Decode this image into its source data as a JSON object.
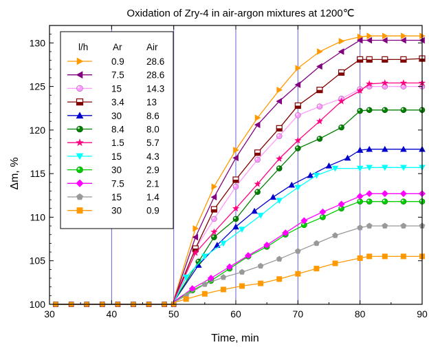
{
  "chart_data": {
    "type": "line",
    "title": "Oxidation of Zry-4 in air-argon mixtures at 1200℃",
    "xlabel": "Time, min",
    "ylabel": "Δm, %",
    "xlim": [
      30,
      90
    ],
    "ylim": [
      100,
      132
    ],
    "x_ticks": [
      30,
      40,
      50,
      60,
      70,
      80,
      90
    ],
    "y_ticks": [
      100,
      105,
      110,
      115,
      120,
      125,
      130
    ],
    "vertical_reference_lines_x": [
      40,
      50,
      60,
      70,
      80
    ],
    "legend": {
      "placement": "upper-left",
      "headers": [
        "l/h",
        "Ar",
        "Air"
      ]
    },
    "baseline_x": [
      31,
      33.5,
      36,
      38.5,
      41,
      43.5,
      46,
      48.5,
      50
    ],
    "series": [
      {
        "ar": "0.9",
        "air": "28.6",
        "color": "#ff9900",
        "marker": "triangle-right",
        "x": [
          50,
          53.5,
          56.5,
          60,
          63.5,
          67,
          70,
          73.5,
          77,
          80,
          81.5,
          84,
          87,
          90
        ],
        "y": [
          100.5,
          108.7,
          113.5,
          117.7,
          121.4,
          124.6,
          127.1,
          129.0,
          130.2,
          130.7,
          130.8,
          130.8,
          130.8,
          130.8
        ]
      },
      {
        "ar": "7.5",
        "air": "28.6",
        "color": "#800080",
        "marker": "triangle-left",
        "x": [
          50,
          53.5,
          56.5,
          60,
          63.5,
          67,
          70,
          73.5,
          77,
          80,
          81.5,
          84,
          87,
          90
        ],
        "y": [
          100.4,
          107.7,
          112.3,
          116.8,
          120.6,
          123.3,
          125.2,
          127.3,
          129.0,
          130.3,
          130.3,
          130.3,
          130.3,
          130.3
        ]
      },
      {
        "ar": "15",
        "air": "14.3",
        "color": "#ff99ff",
        "marker": "circle",
        "x": [
          50,
          53.5,
          56.5,
          60,
          63.5,
          67,
          70,
          73.5,
          77,
          80,
          81.5,
          84,
          87,
          90
        ],
        "y": [
          100.4,
          106.4,
          109.8,
          113.5,
          116.6,
          119.3,
          121.7,
          122.7,
          123.6,
          124.7,
          125.0,
          125.0,
          125.0,
          125.0
        ]
      },
      {
        "ar": "3.4",
        "air": "13",
        "color": "#800000",
        "marker": "square-half",
        "x": [
          50,
          53.5,
          56.5,
          60,
          63.5,
          67,
          70,
          73.5,
          77,
          80,
          81.5,
          84,
          87,
          90
        ],
        "y": [
          100.4,
          106.4,
          110.9,
          114.3,
          117.4,
          120.2,
          122.8,
          124.6,
          126.6,
          128.1,
          128.1,
          128.1,
          128.1,
          128.2
        ]
      },
      {
        "ar": "30",
        "air": "8.6",
        "color": "#0000cc",
        "marker": "triangle-up",
        "x": [
          50,
          54,
          57,
          60,
          63,
          66,
          69,
          72,
          75,
          78,
          80,
          81.5,
          84,
          87,
          90
        ],
        "y": [
          100.3,
          104.5,
          106.8,
          108.9,
          110.7,
          112.3,
          113.7,
          114.8,
          115.9,
          116.8,
          117.7,
          117.8,
          117.8,
          117.8,
          117.8
        ]
      },
      {
        "ar": "8.4",
        "air": "8.0",
        "color": "#008000",
        "marker": "circle",
        "x": [
          50,
          54,
          56.5,
          60,
          63.5,
          67,
          70,
          73.5,
          77,
          80,
          81.5,
          84,
          87,
          90
        ],
        "y": [
          100.3,
          104.9,
          107.7,
          109.8,
          112.9,
          115.6,
          117.9,
          119.0,
          120.3,
          122.2,
          122.3,
          122.3,
          122.3,
          122.3
        ]
      },
      {
        "ar": "1.5",
        "air": "5.7",
        "color": "#ff0080",
        "marker": "star",
        "x": [
          50,
          53.5,
          56.5,
          60,
          63.5,
          67,
          70,
          73.5,
          77,
          80,
          81.5,
          84,
          87,
          90
        ],
        "y": [
          100.4,
          105.9,
          108.3,
          111.0,
          113.8,
          116.7,
          118.8,
          121.0,
          123.3,
          124.5,
          125.3,
          125.4,
          125.4,
          125.4
        ]
      },
      {
        "ar": "15",
        "air": "4.3",
        "color": "#00ffff",
        "marker": "triangle-down",
        "x": [
          50,
          52,
          55,
          58,
          61,
          64,
          67,
          70,
          73,
          76,
          80,
          81.5,
          84,
          87,
          90
        ],
        "y": [
          100.2,
          103.1,
          105.5,
          107.0,
          108.6,
          110.2,
          111.9,
          113.4,
          114.8,
          115.6,
          115.6,
          115.7,
          115.7,
          115.7,
          115.7
        ]
      },
      {
        "ar": "30",
        "air": "2.9",
        "color": "#00cc00",
        "marker": "circle",
        "x": [
          50,
          53,
          56,
          59,
          62,
          65,
          68,
          71,
          74,
          77,
          80,
          81.5,
          84,
          87,
          90
        ],
        "y": [
          100.3,
          101.6,
          102.7,
          104.1,
          105.5,
          106.6,
          108.0,
          109.1,
          110.0,
          111.0,
          111.8,
          111.8,
          111.8,
          111.8,
          111.8
        ]
      },
      {
        "ar": "7.5",
        "air": "2.1",
        "color": "#ff00ff",
        "marker": "diamond",
        "x": [
          50,
          53,
          56,
          59,
          62,
          65,
          68,
          71,
          74,
          77,
          80,
          81.5,
          84,
          87,
          90
        ],
        "y": [
          100.3,
          101.8,
          103.0,
          104.3,
          105.6,
          106.8,
          108.2,
          109.6,
          110.6,
          111.5,
          112.4,
          112.7,
          112.7,
          112.7,
          112.7
        ]
      },
      {
        "ar": "15",
        "air": "1.4",
        "color": "#999999",
        "marker": "pentagon",
        "x": [
          50,
          52,
          55,
          58,
          61,
          64,
          67,
          70,
          73,
          76,
          80,
          81.5,
          84,
          87,
          90
        ],
        "y": [
          100.2,
          101.0,
          102.3,
          103.1,
          103.7,
          104.4,
          105.2,
          106.1,
          107.0,
          107.9,
          108.8,
          109.0,
          109.0,
          109.0,
          109.0
        ]
      },
      {
        "ar": "30",
        "air": "0.9",
        "color": "#ff9900",
        "marker": "square",
        "x": [
          50,
          52,
          55,
          58,
          61,
          64,
          67,
          70,
          73,
          76,
          80,
          81.5,
          84,
          87,
          90
        ],
        "y": [
          100.2,
          100.6,
          101.2,
          101.7,
          102.1,
          102.4,
          102.9,
          103.5,
          104.1,
          104.7,
          105.3,
          105.5,
          105.5,
          105.5,
          105.5
        ]
      }
    ]
  }
}
